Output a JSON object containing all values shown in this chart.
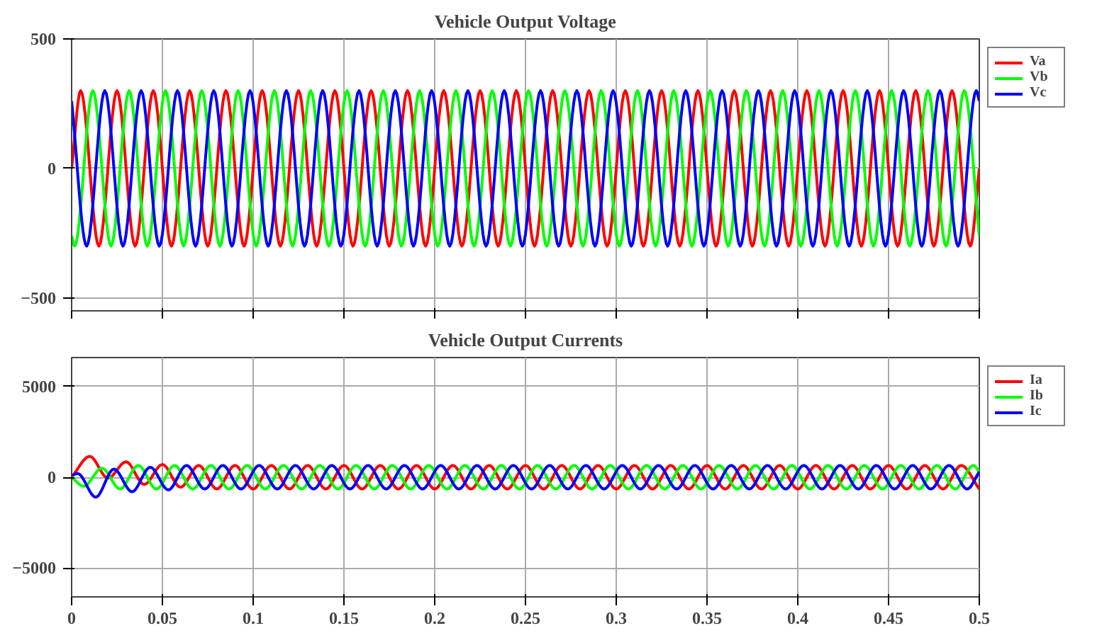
{
  "chart_data": [
    {
      "type": "line",
      "title": "Vehicle Output Voltage",
      "xlim": [
        0,
        0.5
      ],
      "ylim": [
        -550,
        500
      ],
      "xticks": [
        0,
        0.05,
        0.1,
        0.15,
        0.2,
        0.25,
        0.3,
        0.35,
        0.4,
        0.45,
        0.5
      ],
      "yticks": [
        -500,
        0,
        500
      ],
      "tick_labels": "y",
      "grid": true,
      "legend": "right",
      "line_style": "solid",
      "series": [
        {
          "name": "Va",
          "color": "#ff0000",
          "x": [
            0,
            0.005,
            0.015,
            0.025,
            0.035,
            0.045,
            0.055,
            0.065,
            0.075,
            0.085,
            0.095,
            0.105,
            0.115,
            0.125,
            0.135,
            0.145,
            0.155,
            0.165,
            0.175,
            0.185,
            0.195,
            0.205,
            0.215,
            0.225,
            0.235,
            0.245,
            0.255,
            0.265,
            0.275,
            0.285,
            0.295,
            0.305,
            0.315,
            0.325,
            0.335,
            0.345,
            0.355,
            0.365,
            0.375,
            0.385,
            0.395,
            0.405,
            0.415,
            0.425,
            0.435,
            0.445,
            0.455,
            0.465,
            0.475,
            0.485,
            0.495,
            0.5
          ],
          "values": [
            0,
            300,
            -300,
            300,
            -300,
            300,
            -300,
            300,
            -300,
            300,
            -300,
            300,
            -300,
            300,
            -300,
            300,
            -300,
            300,
            -300,
            300,
            -300,
            300,
            -300,
            300,
            -300,
            300,
            -300,
            300,
            -300,
            300,
            -300,
            300,
            -300,
            300,
            -300,
            300,
            -300,
            300,
            -300,
            300,
            -300,
            300,
            -300,
            300,
            -300,
            300,
            -300,
            300,
            -300,
            300,
            -300,
            0
          ]
        },
        {
          "name": "Vb",
          "color": "#00ff00",
          "x": [
            0,
            0.0017,
            0.0117,
            0.0217,
            0.0317,
            0.0417,
            0.0517,
            0.0617,
            0.0717,
            0.0817,
            0.0917,
            0.1017,
            0.1117,
            0.1217,
            0.1317,
            0.1417,
            0.1517,
            0.1617,
            0.1717,
            0.1817,
            0.1917,
            0.2017,
            0.2117,
            0.2217,
            0.2317,
            0.2417,
            0.2517,
            0.2617,
            0.2717,
            0.2817,
            0.2917,
            0.3017,
            0.3117,
            0.3217,
            0.3317,
            0.3417,
            0.3517,
            0.3617,
            0.3717,
            0.3817,
            0.3917,
            0.4017,
            0.4117,
            0.4217,
            0.4317,
            0.4417,
            0.4517,
            0.4617,
            0.4717,
            0.4817,
            0.4917,
            0.5
          ],
          "values": [
            -260,
            -300,
            300,
            -300,
            300,
            -300,
            300,
            -300,
            300,
            -300,
            300,
            -300,
            300,
            -300,
            300,
            -300,
            300,
            -300,
            300,
            -300,
            300,
            -300,
            300,
            -300,
            300,
            -300,
            300,
            -300,
            300,
            -300,
            300,
            -300,
            300,
            -300,
            300,
            -300,
            300,
            -300,
            300,
            -300,
            300,
            -300,
            300,
            -300,
            300,
            -300,
            300,
            -300,
            300,
            -300,
            300,
            -260
          ]
        },
        {
          "name": "Vc",
          "color": "#0000ff",
          "x": [
            0,
            0.0083,
            0.0183,
            0.0283,
            0.0383,
            0.0483,
            0.0583,
            0.0683,
            0.0783,
            0.0883,
            0.0983,
            0.1083,
            0.1183,
            0.1283,
            0.1383,
            0.1483,
            0.1583,
            0.1683,
            0.1783,
            0.1883,
            0.1983,
            0.2083,
            0.2183,
            0.2283,
            0.2383,
            0.2483,
            0.2583,
            0.2683,
            0.2783,
            0.2883,
            0.2983,
            0.3083,
            0.3183,
            0.3283,
            0.3383,
            0.3483,
            0.3583,
            0.3683,
            0.3783,
            0.3883,
            0.3983,
            0.4083,
            0.4183,
            0.4283,
            0.4383,
            0.4483,
            0.4583,
            0.4683,
            0.4783,
            0.4883,
            0.4983,
            0.5
          ],
          "values": [
            260,
            -300,
            300,
            -300,
            300,
            -300,
            300,
            -300,
            300,
            -300,
            300,
            -300,
            300,
            -300,
            300,
            -300,
            300,
            -300,
            300,
            -300,
            300,
            -300,
            300,
            -300,
            300,
            -300,
            300,
            -300,
            300,
            -300,
            300,
            -300,
            300,
            -300,
            300,
            -300,
            300,
            -300,
            300,
            -300,
            300,
            -300,
            300,
            -300,
            300,
            -300,
            300,
            -300,
            300,
            -300,
            300,
            260
          ]
        }
      ]
    },
    {
      "type": "line",
      "title": "Vehicle Output Currents",
      "xlim": [
        0,
        0.5
      ],
      "ylim": [
        -6600,
        6600
      ],
      "xticks": [
        0,
        0.05,
        0.1,
        0.15,
        0.2,
        0.25,
        0.3,
        0.35,
        0.4,
        0.45,
        0.5
      ],
      "yticks": [
        -5000,
        0,
        5000
      ],
      "grid": true,
      "legend": "right",
      "line_style": "solid",
      "series": [
        {
          "name": "Ia",
          "color": "#ff0000",
          "x": [
            0,
            0.01,
            0.02,
            0.03,
            0.04,
            0.05,
            0.06,
            0.07,
            0.08,
            0.09,
            0.1,
            0.11,
            0.12,
            0.13,
            0.14,
            0.15,
            0.16,
            0.17,
            0.18,
            0.19,
            0.2,
            0.21,
            0.22,
            0.23,
            0.24,
            0.25,
            0.26,
            0.27,
            0.28,
            0.29,
            0.3,
            0.31,
            0.32,
            0.33,
            0.34,
            0.35,
            0.36,
            0.37,
            0.38,
            0.39,
            0.4,
            0.41,
            0.42,
            0.43,
            0.44,
            0.45,
            0.46,
            0.47,
            0.48,
            0.49,
            0.5
          ],
          "values": [
            0,
            1150,
            -50,
            850,
            -400,
            700,
            -550,
            650,
            -650,
            650,
            -650,
            650,
            -650,
            650,
            -650,
            650,
            -650,
            650,
            -650,
            650,
            -650,
            650,
            -650,
            650,
            -650,
            650,
            -650,
            650,
            -650,
            650,
            -650,
            650,
            -650,
            650,
            -650,
            650,
            -650,
            650,
            -650,
            650,
            -650,
            650,
            -650,
            650,
            -650,
            650,
            -650,
            650,
            -650,
            650,
            -650
          ]
        },
        {
          "name": "Ib",
          "color": "#00ff00",
          "x": [
            0,
            0.0067,
            0.0167,
            0.0267,
            0.0367,
            0.0467,
            0.0567,
            0.0667,
            0.0767,
            0.0867,
            0.0967,
            0.1067,
            0.1167,
            0.1267,
            0.1367,
            0.1467,
            0.1567,
            0.1667,
            0.1767,
            0.1867,
            0.1967,
            0.2067,
            0.2167,
            0.2267,
            0.2367,
            0.2467,
            0.2567,
            0.2667,
            0.2767,
            0.2867,
            0.2967,
            0.3067,
            0.3167,
            0.3267,
            0.3367,
            0.3467,
            0.3567,
            0.3667,
            0.3767,
            0.3867,
            0.3967,
            0.4067,
            0.4167,
            0.4267,
            0.4367,
            0.4467,
            0.4567,
            0.4667,
            0.4767,
            0.4867,
            0.4967,
            0.5
          ],
          "values": [
            0,
            -500,
            500,
            -650,
            650,
            -650,
            650,
            -650,
            650,
            -650,
            650,
            -650,
            650,
            -650,
            650,
            -650,
            650,
            -650,
            650,
            -650,
            650,
            -650,
            650,
            -650,
            650,
            -650,
            650,
            -650,
            650,
            -650,
            650,
            -650,
            650,
            -650,
            650,
            -650,
            650,
            -650,
            650,
            -650,
            650,
            -650,
            650,
            -650,
            650,
            -650,
            650,
            -650,
            650,
            -650,
            650,
            300
          ]
        },
        {
          "name": "Ic",
          "color": "#0000ff",
          "x": [
            0,
            0.0033,
            0.0133,
            0.0233,
            0.0333,
            0.0433,
            0.0533,
            0.0633,
            0.0733,
            0.0833,
            0.0933,
            0.1033,
            0.1133,
            0.1233,
            0.1333,
            0.1433,
            0.1533,
            0.1633,
            0.1733,
            0.1833,
            0.1933,
            0.2033,
            0.2133,
            0.2233,
            0.2333,
            0.2433,
            0.2533,
            0.2633,
            0.2733,
            0.2833,
            0.2933,
            0.3033,
            0.3133,
            0.3233,
            0.3333,
            0.3433,
            0.3533,
            0.3633,
            0.3733,
            0.3833,
            0.3933,
            0.4033,
            0.4133,
            0.4233,
            0.4333,
            0.4433,
            0.4533,
            0.4633,
            0.4733,
            0.4833,
            0.4933,
            0.5
          ],
          "values": [
            100,
            200,
            -1100,
            450,
            -800,
            550,
            -700,
            650,
            -650,
            650,
            -650,
            650,
            -650,
            650,
            -650,
            650,
            -650,
            650,
            -650,
            650,
            -650,
            650,
            -650,
            650,
            -650,
            650,
            -650,
            650,
            -650,
            650,
            -650,
            650,
            -650,
            650,
            -650,
            650,
            -650,
            650,
            -650,
            650,
            -650,
            650,
            -650,
            650,
            -650,
            650,
            -650,
            650,
            -650,
            650,
            -650,
            300
          ]
        }
      ]
    }
  ]
}
